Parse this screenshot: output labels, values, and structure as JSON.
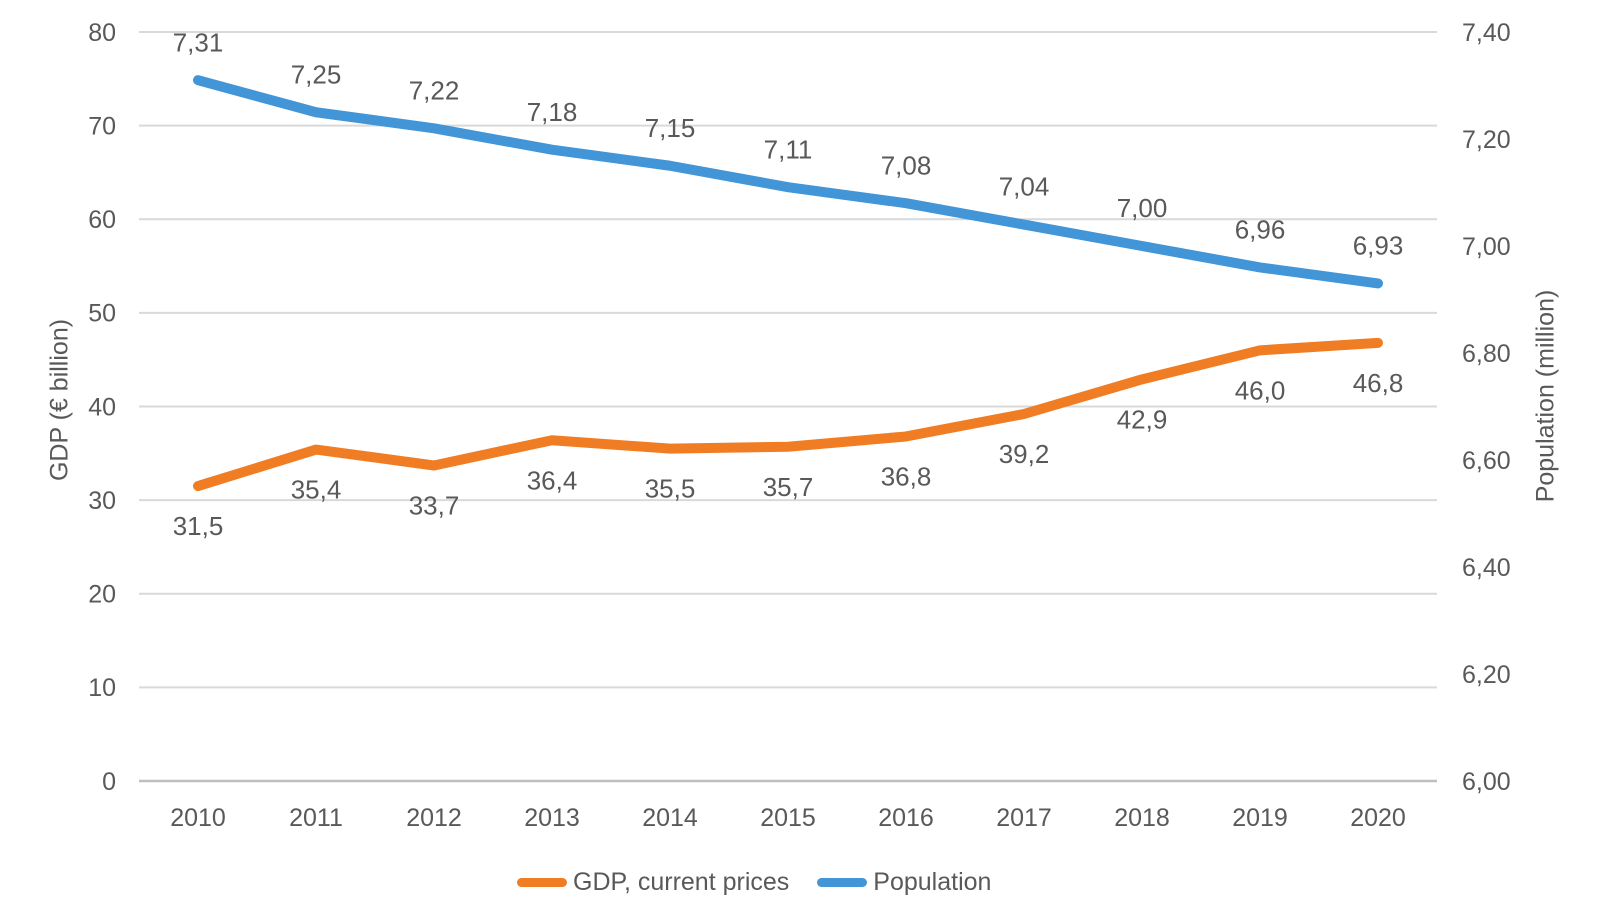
{
  "chart_data": {
    "type": "line",
    "title": "",
    "categories": [
      "2010",
      "2011",
      "2012",
      "2013",
      "2014",
      "2015",
      "2016",
      "2017",
      "2018",
      "2019",
      "2020"
    ],
    "series": [
      {
        "name": "GDP, current prices",
        "axis": "left",
        "color": "#F07D23",
        "values": [
          31.5,
          35.4,
          33.7,
          36.4,
          35.5,
          35.7,
          36.8,
          39.2,
          42.9,
          46.0,
          46.8
        ],
        "point_labels": [
          "31,5",
          "35,4",
          "33,7",
          "36,4",
          "35,5",
          "35,7",
          "36,8",
          "39,2",
          "42,9",
          "46,0",
          "46,8"
        ],
        "label_position": "below"
      },
      {
        "name": "Population",
        "axis": "right",
        "color": "#4295D7",
        "values": [
          7.31,
          7.25,
          7.22,
          7.18,
          7.15,
          7.11,
          7.08,
          7.04,
          7.0,
          6.96,
          6.93
        ],
        "point_labels": [
          "7,31",
          "7,25",
          "7,22",
          "7,18",
          "7,15",
          "7,11",
          "7,08",
          "7,04",
          "7,00",
          "6,96",
          "6,93"
        ],
        "label_position": "above"
      }
    ],
    "left_axis": {
      "label": "GDP (€ billion)",
      "min": 0,
      "max": 80,
      "step": 10,
      "ticks": [
        {
          "label": "80",
          "value": 80
        },
        {
          "label": "70",
          "value": 70
        },
        {
          "label": "60",
          "value": 60
        },
        {
          "label": "50",
          "value": 50
        },
        {
          "label": "40",
          "value": 40
        },
        {
          "label": "30",
          "value": 30
        },
        {
          "label": "20",
          "value": 20
        },
        {
          "label": "10",
          "value": 10
        },
        {
          "label": "0",
          "value": 0
        }
      ]
    },
    "right_axis": {
      "label": "Population (million)",
      "min": 6.0,
      "max": 7.4,
      "step": 0.2,
      "ticks": [
        {
          "label": "7,40",
          "value": 7.4
        },
        {
          "label": "7,20",
          "value": 7.2
        },
        {
          "label": "7,00",
          "value": 7.0
        },
        {
          "label": "6,80",
          "value": 6.8
        },
        {
          "label": "6,60",
          "value": 6.6
        },
        {
          "label": "6,40",
          "value": 6.4
        },
        {
          "label": "6,20",
          "value": 6.2
        },
        {
          "label": "6,00",
          "value": 6.0
        }
      ]
    },
    "grid": true,
    "legend_position": "bottom"
  },
  "styles": {
    "text_color": "#595959",
    "gridline_color": "#D9D9D9",
    "axisline_color": "#BFBFBF",
    "background": "#FFFFFF"
  }
}
